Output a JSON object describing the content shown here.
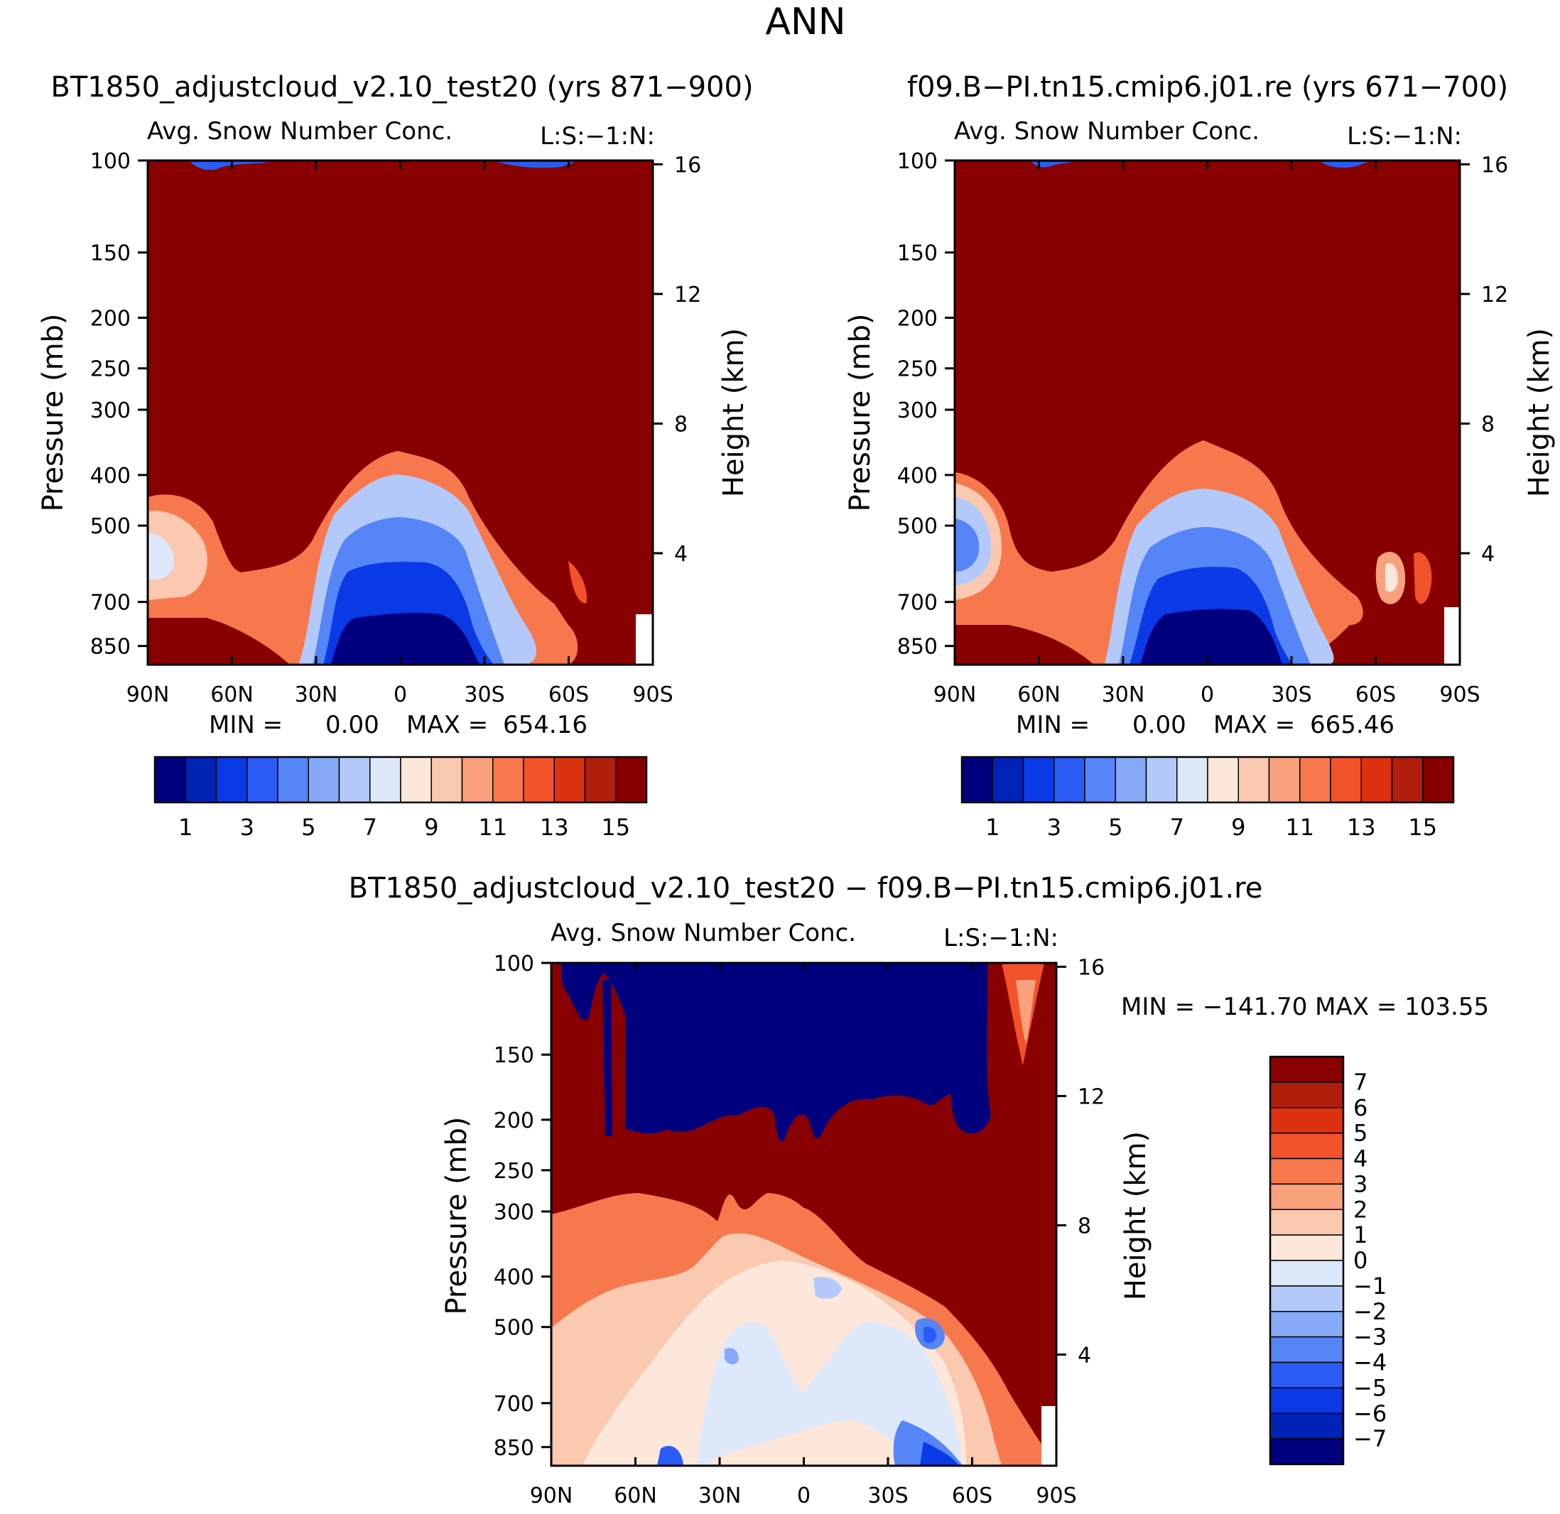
{
  "page_title": "ANN",
  "panels": {
    "top_left": {
      "title": "BT1850_adjustcloud_v2.10_test20 (yrs 871−900)",
      "variable": "Avg. Snow Number Conc.",
      "attrs": "L:S:−1:N:",
      "min_label": "MIN  =",
      "min_value": "0.00",
      "max_label": "MAX  =",
      "max_value": "654.16"
    },
    "top_right": {
      "title": "f09.B−PI.tn15.cmip6.j01.re (yrs 671−700)",
      "variable": "Avg. Snow Number Conc.",
      "attrs": "L:S:−1:N:",
      "min_label": "MIN  =",
      "min_value": "0.00",
      "max_label": "MAX  =",
      "max_value": "665.46"
    },
    "bottom": {
      "title": "BT1850_adjustcloud_v2.10_test20  −  f09.B−PI.tn15.cmip6.j01.re",
      "variable": "Avg. Snow Number Conc.",
      "attrs": "L:S:−1:N:",
      "minmax": "MIN  =  −141.70    MAX  =  103.55"
    }
  },
  "axes": {
    "ylabel": "Pressure (mb)",
    "y2label": "Height (km)",
    "pressure_ticks": [
      "100",
      "150",
      "200",
      "250",
      "300",
      "400",
      "500",
      "700",
      "850"
    ],
    "height_ticks": [
      "16",
      "12",
      "8",
      "4"
    ],
    "lat_ticks": [
      "90N",
      "60N",
      "30N",
      "0",
      "30S",
      "60S",
      "90S"
    ]
  },
  "colorbars": {
    "abs_labels": [
      "1",
      "3",
      "5",
      "7",
      "9",
      "11",
      "13",
      "15"
    ],
    "abs_colors": [
      "#00007f",
      "#0022b5",
      "#0a3ae6",
      "#2a5cf5",
      "#5585f7",
      "#86a9f8",
      "#b3c9f9",
      "#dde8fa",
      "#fde7da",
      "#fbc8b0",
      "#f9a17d",
      "#f7784d",
      "#f2522a",
      "#dc3210",
      "#b01e0c",
      "#880000"
    ],
    "diff_labels": [
      "7",
      "6",
      "5",
      "4",
      "3",
      "2",
      "1",
      "0",
      "−1",
      "−2",
      "−3",
      "−4",
      "−5",
      "−6",
      "−7"
    ],
    "diff_colors": [
      "#880000",
      "#b01e0c",
      "#dc3210",
      "#f2522a",
      "#f7784d",
      "#f9a17d",
      "#fbc8b0",
      "#fde7da",
      "#dde8fa",
      "#b3c9f9",
      "#86a9f8",
      "#5585f7",
      "#2a5cf5",
      "#0a3ae6",
      "#0022b5",
      "#00007f"
    ]
  },
  "chart_data": [
    {
      "type": "heatmap",
      "title": "BT1850_adjustcloud_v2.10_test20 (yrs 871−900)",
      "subtitle": "Avg. Snow Number Conc.",
      "xlabel": "",
      "ylabel": "Pressure (mb)",
      "y2label": "Height (km)",
      "x_ticks": [
        "90N",
        "60N",
        "30N",
        "0",
        "30S",
        "60S",
        "90S"
      ],
      "y_ticks_mb": [
        100,
        150,
        200,
        250,
        300,
        400,
        500,
        700,
        850
      ],
      "colorbar_levels": [
        1,
        3,
        5,
        7,
        9,
        11,
        13,
        15
      ],
      "min": 0.0,
      "max": 654.16
    },
    {
      "type": "heatmap",
      "title": "f09.B−PI.tn15.cmip6.j01.re (yrs 671−700)",
      "subtitle": "Avg. Snow Number Conc.",
      "xlabel": "",
      "ylabel": "Pressure (mb)",
      "y2label": "Height (km)",
      "x_ticks": [
        "90N",
        "60N",
        "30N",
        "0",
        "30S",
        "60S",
        "90S"
      ],
      "y_ticks_mb": [
        100,
        150,
        200,
        250,
        300,
        400,
        500,
        700,
        850
      ],
      "colorbar_levels": [
        1,
        3,
        5,
        7,
        9,
        11,
        13,
        15
      ],
      "min": 0.0,
      "max": 665.46
    },
    {
      "type": "heatmap",
      "title": "BT1850_adjustcloud_v2.10_test20  −  f09.B−PI.tn15.cmip6.j01.re",
      "subtitle": "Avg. Snow Number Conc.",
      "xlabel": "",
      "ylabel": "Pressure (mb)",
      "y2label": "Height (km)",
      "x_ticks": [
        "90N",
        "60N",
        "30N",
        "0",
        "30S",
        "60S",
        "90S"
      ],
      "y_ticks_mb": [
        100,
        150,
        200,
        250,
        300,
        400,
        500,
        700,
        850
      ],
      "colorbar_levels": [
        7,
        6,
        5,
        4,
        3,
        2,
        1,
        0,
        -1,
        -2,
        -3,
        -4,
        -5,
        -6,
        -7
      ],
      "min": -141.7,
      "max": 103.55
    }
  ]
}
